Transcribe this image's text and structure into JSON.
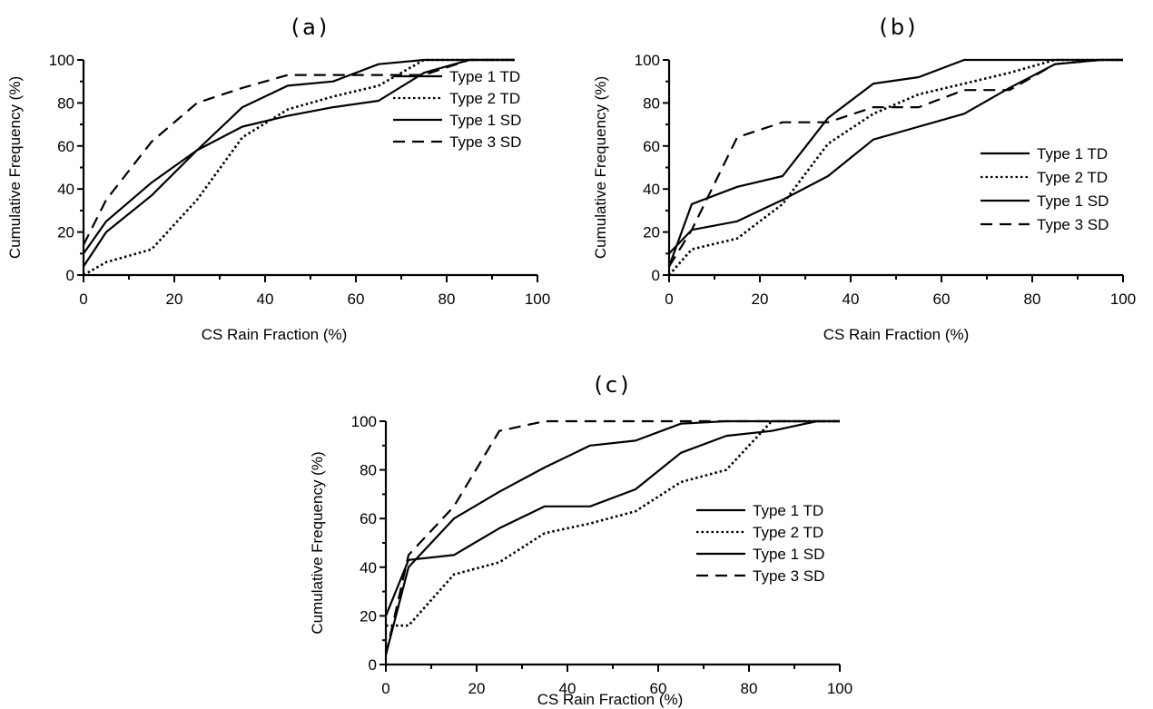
{
  "chart_data": [
    {
      "type": "line",
      "panel_label": "(a)",
      "xlabel": "CS Rain Fraction (%)",
      "ylabel": "Cumulative Frequency (%)",
      "xlim": [
        0,
        100
      ],
      "ylim": [
        0,
        100
      ],
      "x_ticks": [
        "0",
        "20",
        "40",
        "60",
        "80",
        "100"
      ],
      "y_ticks": [
        "0",
        "20",
        "40",
        "60",
        "80",
        "100"
      ],
      "legend_position": "right",
      "series": [
        {
          "name": "Type 1 TD",
          "dash": "solid",
          "points": [
            [
              0,
              10
            ],
            [
              5,
              25
            ],
            [
              15,
              43
            ],
            [
              25,
              58
            ],
            [
              35,
              69
            ],
            [
              45,
              74
            ],
            [
              55,
              78
            ],
            [
              65,
              81
            ],
            [
              75,
              94
            ],
            [
              85,
              100
            ],
            [
              95,
              100
            ]
          ]
        },
        {
          "name": "Type 2 TD",
          "dash": "dotted",
          "points": [
            [
              0,
              0
            ],
            [
              5,
              6
            ],
            [
              15,
              12
            ],
            [
              25,
              35
            ],
            [
              35,
              64
            ],
            [
              45,
              77
            ],
            [
              55,
              83
            ],
            [
              65,
              88
            ],
            [
              75,
              100
            ],
            [
              85,
              100
            ],
            [
              95,
              100
            ]
          ]
        },
        {
          "name": "Type 1 SD",
          "dash": "solid",
          "points": [
            [
              0,
              4
            ],
            [
              5,
              20
            ],
            [
              15,
              37
            ],
            [
              25,
              58
            ],
            [
              35,
              78
            ],
            [
              45,
              88
            ],
            [
              55,
              90
            ],
            [
              65,
              98
            ],
            [
              75,
              100
            ],
            [
              85,
              100
            ],
            [
              95,
              100
            ]
          ]
        },
        {
          "name": "Type 3 SD",
          "dash": "dashed",
          "points": [
            [
              0,
              14
            ],
            [
              5,
              35
            ],
            [
              15,
              62
            ],
            [
              25,
              80
            ],
            [
              35,
              87
            ],
            [
              45,
              93
            ],
            [
              55,
              93
            ],
            [
              65,
              93
            ],
            [
              75,
              93
            ],
            [
              85,
              100
            ],
            [
              95,
              100
            ]
          ]
        }
      ]
    },
    {
      "type": "line",
      "panel_label": "(b)",
      "xlabel": "CS Rain Fraction (%)",
      "ylabel": "Cumulative Frequency (%)",
      "xlim": [
        0,
        100
      ],
      "ylim": [
        0,
        100
      ],
      "x_ticks": [
        "0",
        "20",
        "40",
        "60",
        "80",
        "100"
      ],
      "y_ticks": [
        "0",
        "20",
        "40",
        "60",
        "80",
        "100"
      ],
      "legend_position": "right",
      "series": [
        {
          "name": "Type 1 TD",
          "dash": "solid",
          "points": [
            [
              0,
              10
            ],
            [
              5,
              21
            ],
            [
              15,
              25
            ],
            [
              25,
              35
            ],
            [
              35,
              46
            ],
            [
              45,
              63
            ],
            [
              55,
              69
            ],
            [
              65,
              75
            ],
            [
              75,
              87
            ],
            [
              85,
              98
            ],
            [
              95,
              100
            ],
            [
              100,
              100
            ]
          ]
        },
        {
          "name": "Type 2 TD",
          "dash": "dotted",
          "points": [
            [
              0,
              0
            ],
            [
              5,
              12
            ],
            [
              15,
              17
            ],
            [
              25,
              33
            ],
            [
              35,
              61
            ],
            [
              45,
              75
            ],
            [
              55,
              84
            ],
            [
              65,
              89
            ],
            [
              75,
              94
            ],
            [
              85,
              100
            ],
            [
              95,
              100
            ],
            [
              100,
              100
            ]
          ]
        },
        {
          "name": "Type 1 SD",
          "dash": "solid",
          "points": [
            [
              0,
              4
            ],
            [
              5,
              33
            ],
            [
              15,
              41
            ],
            [
              25,
              46
            ],
            [
              35,
              73
            ],
            [
              45,
              89
            ],
            [
              55,
              92
            ],
            [
              65,
              100
            ],
            [
              75,
              100
            ],
            [
              85,
              100
            ],
            [
              95,
              100
            ],
            [
              100,
              100
            ]
          ]
        },
        {
          "name": "Type 3 SD",
          "dash": "dashed",
          "points": [
            [
              0,
              4
            ],
            [
              5,
              21
            ],
            [
              15,
              64
            ],
            [
              25,
              71
            ],
            [
              35,
              71
            ],
            [
              45,
              78
            ],
            [
              55,
              78
            ],
            [
              65,
              86
            ],
            [
              75,
              86
            ],
            [
              85,
              98
            ],
            [
              95,
              100
            ],
            [
              100,
              100
            ]
          ]
        }
      ]
    },
    {
      "type": "line",
      "panel_label": "(c)",
      "xlabel": "CS Rain Fraction (%)",
      "ylabel": "Cumulative Frequency (%)",
      "xlim": [
        0,
        100
      ],
      "ylim": [
        0,
        100
      ],
      "x_ticks": [
        "0",
        "20",
        "40",
        "60",
        "80",
        "100"
      ],
      "y_ticks": [
        "0",
        "20",
        "40",
        "60",
        "80",
        "100"
      ],
      "legend_position": "right",
      "series": [
        {
          "name": "Type 1 TD",
          "dash": "solid",
          "points": [
            [
              0,
              20
            ],
            [
              5,
              43
            ],
            [
              15,
              45
            ],
            [
              25,
              56
            ],
            [
              35,
              65
            ],
            [
              45,
              65
            ],
            [
              55,
              72
            ],
            [
              65,
              87
            ],
            [
              75,
              94
            ],
            [
              85,
              96
            ],
            [
              95,
              100
            ],
            [
              100,
              100
            ]
          ]
        },
        {
          "name": "Type 2 TD",
          "dash": "dotted",
          "points": [
            [
              0,
              16
            ],
            [
              5,
              16
            ],
            [
              15,
              37
            ],
            [
              25,
              42
            ],
            [
              35,
              54
            ],
            [
              45,
              58
            ],
            [
              55,
              63
            ],
            [
              65,
              75
            ],
            [
              75,
              80
            ],
            [
              85,
              100
            ],
            [
              95,
              100
            ],
            [
              100,
              100
            ]
          ]
        },
        {
          "name": "Type 1 SD",
          "dash": "solid",
          "points": [
            [
              0,
              4
            ],
            [
              5,
              40
            ],
            [
              15,
              60
            ],
            [
              25,
              71
            ],
            [
              35,
              81
            ],
            [
              45,
              90
            ],
            [
              55,
              92
            ],
            [
              65,
              99
            ],
            [
              75,
              100
            ],
            [
              85,
              100
            ],
            [
              95,
              100
            ],
            [
              100,
              100
            ]
          ]
        },
        {
          "name": "Type 3 SD",
          "dash": "dashed",
          "points": [
            [
              0,
              4
            ],
            [
              5,
              45
            ],
            [
              15,
              65
            ],
            [
              25,
              96
            ],
            [
              35,
              100
            ],
            [
              45,
              100
            ],
            [
              55,
              100
            ],
            [
              65,
              100
            ],
            [
              75,
              100
            ],
            [
              85,
              100
            ],
            [
              95,
              100
            ],
            [
              100,
              100
            ]
          ]
        }
      ]
    }
  ]
}
